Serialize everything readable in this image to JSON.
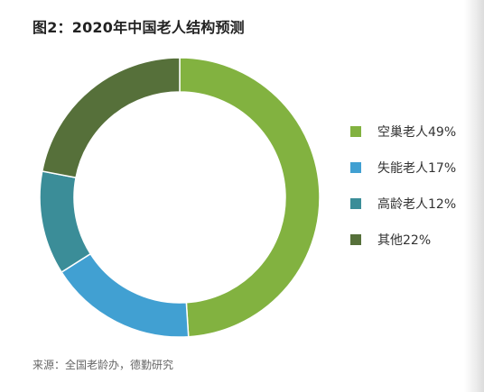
{
  "chart_data": {
    "type": "pie",
    "title": "图2：2020年中国老人结构预测",
    "categories": [
      "空巢老人49%",
      "失能老人17%",
      "高龄老人12%",
      "其他22%"
    ],
    "values": [
      49,
      17,
      12,
      22
    ],
    "colors": [
      "#82b240",
      "#41a0d2",
      "#3b8d98",
      "#56703a"
    ],
    "donut": true,
    "legend_position": "right",
    "source": "来源：全国老龄办，德勤研究"
  }
}
